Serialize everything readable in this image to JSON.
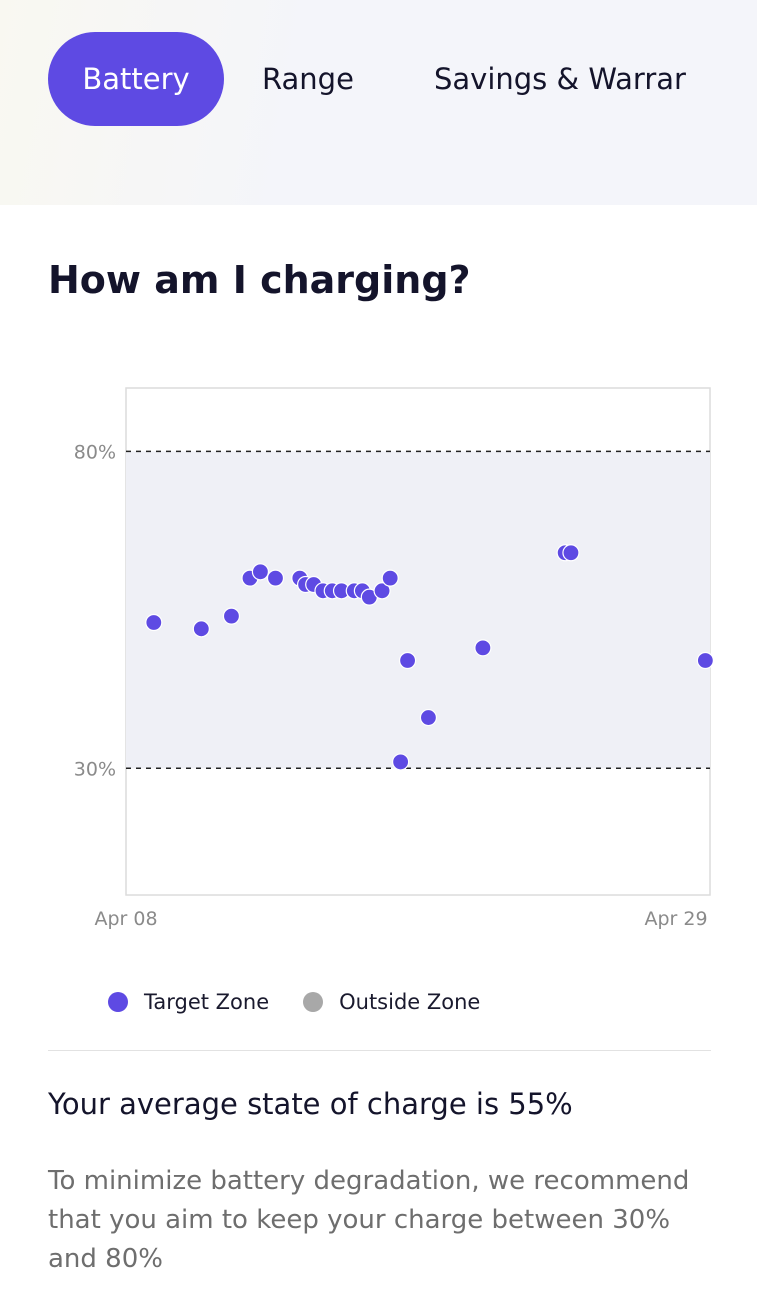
{
  "tabs": [
    {
      "label": "Battery",
      "active": true
    },
    {
      "label": "Range",
      "active": false
    },
    {
      "label": "Savings & Warrar",
      "active": false
    }
  ],
  "section": {
    "title": "How am I charging?"
  },
  "colors": {
    "accent": "#5e4ae3",
    "outside_zone": "#a8a8a8",
    "zone_band": "#eff0f6"
  },
  "chart_data": {
    "type": "scatter",
    "y_unit": "%",
    "ylim": [
      10,
      90
    ],
    "xlim": [
      "Apr 08",
      "Apr 29"
    ],
    "x_ticks": [
      "Apr 08",
      "Apr 29"
    ],
    "y_ticks": [
      "80%",
      "30%"
    ],
    "target_zone": [
      30,
      80
    ],
    "series": [
      {
        "name": "Target Zone",
        "points": [
          {
            "x": "Apr 09 00:00",
            "y": 53
          },
          {
            "x": "Apr 10 17:00",
            "y": 52
          },
          {
            "x": "Apr 11 19:00",
            "y": 54
          },
          {
            "x": "Apr 12 11:00",
            "y": 60
          },
          {
            "x": "Apr 12 20:00",
            "y": 61
          },
          {
            "x": "Apr 13 09:00",
            "y": 60
          },
          {
            "x": "Apr 14 06:00",
            "y": 60
          },
          {
            "x": "Apr 14 11:00",
            "y": 59
          },
          {
            "x": "Apr 14 18:00",
            "y": 59
          },
          {
            "x": "Apr 15 02:00",
            "y": 58
          },
          {
            "x": "Apr 15 10:00",
            "y": 58
          },
          {
            "x": "Apr 15 18:00",
            "y": 58
          },
          {
            "x": "Apr 16 05:00",
            "y": 58
          },
          {
            "x": "Apr 16 12:00",
            "y": 58
          },
          {
            "x": "Apr 16 18:00",
            "y": 57
          },
          {
            "x": "Apr 17 05:00",
            "y": 58
          },
          {
            "x": "Apr 17 12:00",
            "y": 60
          },
          {
            "x": "Apr 17 21:00",
            "y": 31
          },
          {
            "x": "Apr 18 03:00",
            "y": 47
          },
          {
            "x": "Apr 18 21:00",
            "y": 38
          },
          {
            "x": "Apr 20 20:00",
            "y": 49
          },
          {
            "x": "Apr 23 19:00",
            "y": 64
          },
          {
            "x": "Apr 24 00:00",
            "y": 64
          },
          {
            "x": "Apr 28 20:00",
            "y": 47
          }
        ]
      },
      {
        "name": "Outside Zone",
        "points": []
      }
    ]
  },
  "legend": {
    "target": "Target Zone",
    "outside": "Outside Zone"
  },
  "summary": {
    "average": "Your average state of charge is 55%",
    "recommendation": "To minimize battery degradation, we recommend that you aim to keep your charge between 30% and 80%"
  }
}
